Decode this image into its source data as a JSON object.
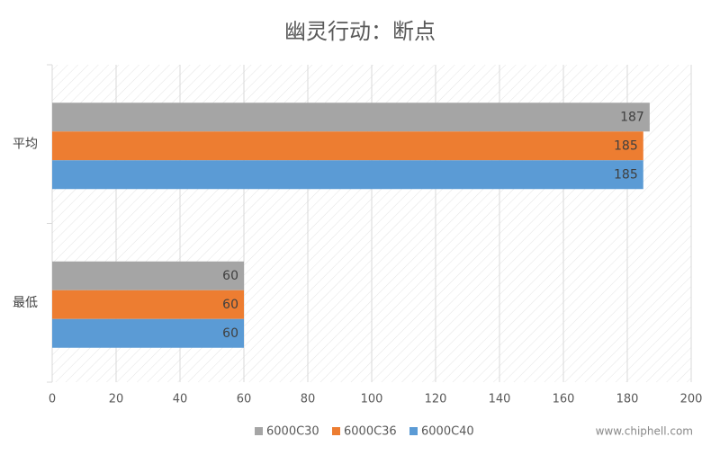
{
  "chart_data": {
    "type": "hbar",
    "title": "幽灵行动：断点",
    "categories": [
      "平均",
      "最低"
    ],
    "series": [
      {
        "name": "6000C30",
        "color": "#a5a5a5",
        "values": [
          187,
          60
        ]
      },
      {
        "name": "6000C36",
        "color": "#ed7d31",
        "values": [
          185,
          60
        ]
      },
      {
        "name": "6000C40",
        "color": "#5b9bd5",
        "values": [
          185,
          60
        ]
      }
    ],
    "xlim": [
      0,
      200
    ],
    "xticks": [
      0,
      20,
      40,
      60,
      80,
      100,
      120,
      140,
      160,
      180,
      200
    ],
    "grid": true,
    "legend": "bottom",
    "watermark": "www.chiphell.com"
  }
}
